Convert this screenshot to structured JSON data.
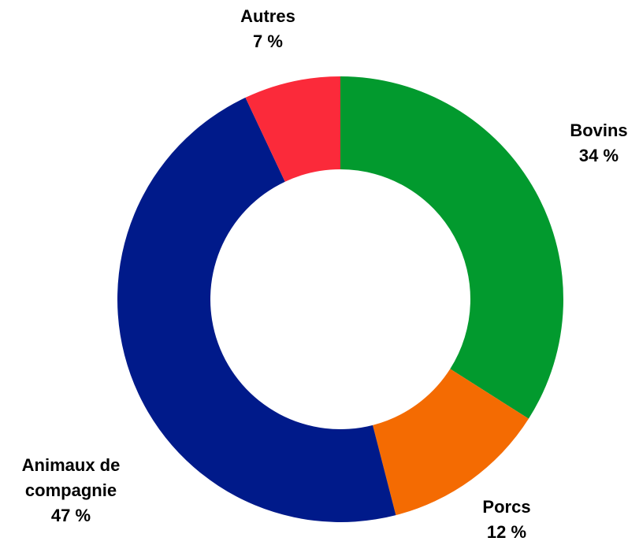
{
  "chart_data": {
    "type": "donut",
    "categories": [
      "Bovins",
      "Porcs",
      "Animaux de compagnie",
      "Autres"
    ],
    "values": [
      34,
      12,
      47,
      7
    ],
    "value_labels": [
      "34 %",
      "12 %",
      "47 %",
      "7 %"
    ],
    "colors": [
      "#029a2e",
      "#f46b02",
      "#001a8a",
      "#fb2a3a"
    ]
  }
}
